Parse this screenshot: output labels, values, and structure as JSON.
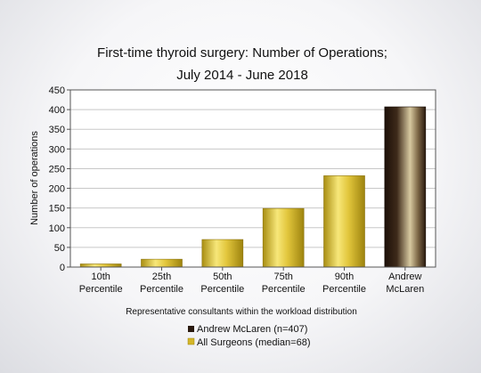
{
  "chart_data": {
    "type": "bar",
    "title": [
      "First-time thyroid surgery: Number of Operations;",
      "July 2014 - June 2018"
    ],
    "xlabel": "Representative consultants within the workload distribution",
    "ylabel": "Number of operations",
    "ylim": [
      0,
      450
    ],
    "yticks": [
      0,
      50,
      100,
      150,
      200,
      250,
      300,
      350,
      400,
      450
    ],
    "grid": true,
    "categories": [
      [
        "10th",
        "Percentile"
      ],
      [
        "25th",
        "Percentile"
      ],
      [
        "50th",
        "Percentile"
      ],
      [
        "75th",
        "Percentile"
      ],
      [
        "90th",
        "Percentile"
      ],
      [
        "Andrew",
        "McLaren"
      ]
    ],
    "values": [
      8,
      20,
      70,
      149,
      232,
      407
    ],
    "bar_series": [
      1,
      1,
      1,
      1,
      1,
      0
    ],
    "series": [
      {
        "name": "Andrew McLaren (n=407)",
        "color": "#2a1a10"
      },
      {
        "name": "All Surgeons (median=68)",
        "color": "#d4b628"
      }
    ],
    "legend_position": "bottom"
  }
}
